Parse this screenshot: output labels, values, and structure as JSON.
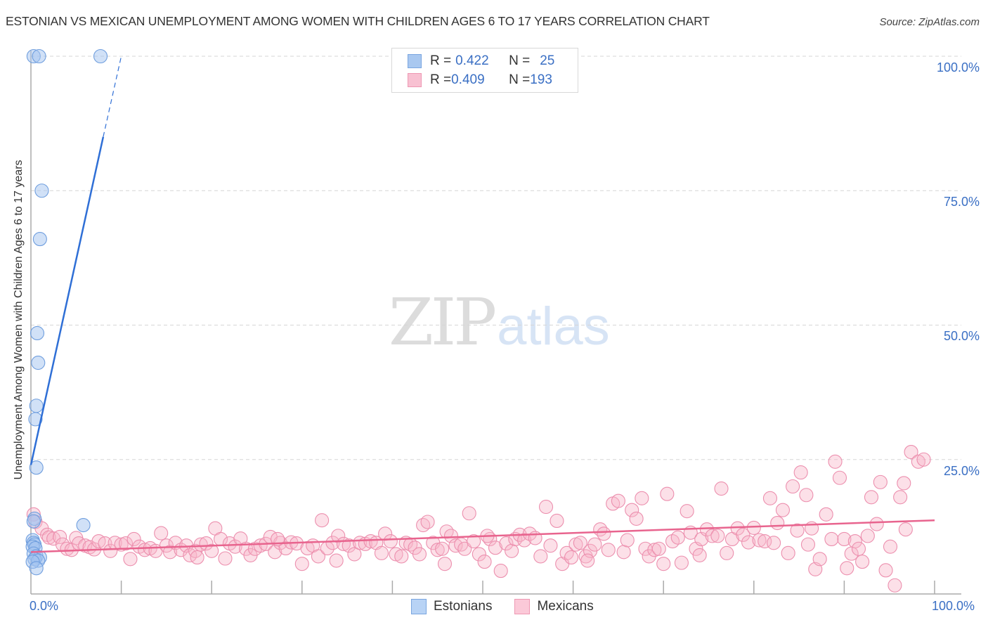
{
  "header": {
    "title": "ESTONIAN VS MEXICAN UNEMPLOYMENT AMONG WOMEN WITH CHILDREN AGES 6 TO 17 YEARS CORRELATION CHART",
    "source": "Source: ZipAtlas.com"
  },
  "legend": {
    "rows": [
      {
        "r_label": "R = ",
        "r_value": "0.422",
        "n_label": "N = ",
        "n_value": "25",
        "color": "#a9c8f0",
        "border": "#7aa6e0"
      },
      {
        "r_label": "R = ",
        "r_value": "0.409",
        "n_label": "N = ",
        "n_value": "193",
        "color": "#f8c1d2",
        "border": "#ee98b3"
      }
    ]
  },
  "bottom_legend": {
    "items": [
      {
        "label": "Estonians",
        "color": "#b8d3f5",
        "border": "#7aa6e0"
      },
      {
        "label": "Mexicans",
        "color": "#fbc9d8",
        "border": "#ee98b3"
      }
    ]
  },
  "axes": {
    "ylabel": "Unemployment Among Women with Children Ages 6 to 17 years",
    "yticks": [
      "100.0%",
      "75.0%",
      "50.0%",
      "25.0%"
    ],
    "xticks": [
      "0.0%",
      "100.0%"
    ]
  },
  "watermark": {
    "zip": "ZIP",
    "atlas": "atlas"
  },
  "colors": {
    "blue_fill": "rgba(164,196,240,0.5)",
    "blue_stroke": "#6f9ede",
    "blue_line": "#2f6fd6",
    "pink_fill": "rgba(248,180,200,0.42)",
    "pink_stroke": "#ec8fae",
    "pink_line": "#e8648e",
    "tick_label": "#3a6fc4"
  },
  "chart_data": {
    "type": "scatter",
    "title": "ESTONIAN VS MEXICAN UNEMPLOYMENT AMONG WOMEN WITH CHILDREN AGES 6 TO 17 YEARS CORRELATION CHART",
    "xlabel": "",
    "ylabel": "Unemployment Among Women with Children Ages 6 to 17 years",
    "xlim": [
      0,
      100
    ],
    "ylim": [
      0,
      100
    ],
    "x_tick_labels": [
      "0.0%",
      "100.0%"
    ],
    "y_tick_labels": [
      "25.0%",
      "50.0%",
      "75.0%",
      "100.0%"
    ],
    "grid": "horizontal dashed at 25/50/75/100",
    "legend_position": "top-center and bottom",
    "series": [
      {
        "name": "Estonians",
        "R": 0.422,
        "N": 25,
        "trend": {
          "x0": 0,
          "y0": 24,
          "x1": 8,
          "y1": 85,
          "dashed_to": {
            "x": 10,
            "y": 100
          }
        },
        "points": [
          [
            0.3,
            100
          ],
          [
            0.9,
            100
          ],
          [
            7.7,
            100
          ],
          [
            1.2,
            75
          ],
          [
            1.0,
            66
          ],
          [
            0.7,
            48.5
          ],
          [
            0.8,
            43
          ],
          [
            0.6,
            35
          ],
          [
            0.5,
            32.5
          ],
          [
            0.6,
            23.5
          ],
          [
            0.4,
            14
          ],
          [
            0.3,
            13.5
          ],
          [
            5.8,
            12.8
          ],
          [
            0.2,
            10
          ],
          [
            0.3,
            9.5
          ],
          [
            0.4,
            9.2
          ],
          [
            0.2,
            8.8
          ],
          [
            0.5,
            8.5
          ],
          [
            0.3,
            7.5
          ],
          [
            0.6,
            7.0
          ],
          [
            1.0,
            6.8
          ],
          [
            0.4,
            6.5
          ],
          [
            0.8,
            6.2
          ],
          [
            0.2,
            6.0
          ],
          [
            0.6,
            4.8
          ]
        ]
      },
      {
        "name": "Mexicans",
        "R": 0.409,
        "N": 193,
        "trend": {
          "x0": 0,
          "y0": 7.8,
          "x1": 100,
          "y1": 13.7
        },
        "points": [
          [
            0.3,
            14.8
          ],
          [
            0.5,
            13.4
          ],
          [
            1.2,
            12.2
          ],
          [
            1.8,
            11.0
          ],
          [
            2.0,
            10.5
          ],
          [
            2.5,
            10.3
          ],
          [
            3.2,
            10.6
          ],
          [
            3.5,
            9.2
          ],
          [
            4.0,
            8.4
          ],
          [
            4.5,
            8.2
          ],
          [
            5.0,
            10.4
          ],
          [
            5.3,
            9.4
          ],
          [
            6.0,
            9.0
          ],
          [
            6.5,
            8.7
          ],
          [
            7.0,
            8.3
          ],
          [
            7.5,
            9.8
          ],
          [
            8.2,
            9.4
          ],
          [
            8.8,
            8.0
          ],
          [
            9.3,
            9.5
          ],
          [
            10.0,
            9.2
          ],
          [
            10.5,
            9.4
          ],
          [
            11.0,
            6.5
          ],
          [
            11.4,
            10.2
          ],
          [
            12.0,
            8.8
          ],
          [
            12.6,
            8.2
          ],
          [
            13.2,
            8.5
          ],
          [
            13.8,
            8.0
          ],
          [
            14.4,
            11.3
          ],
          [
            15.0,
            9.0
          ],
          [
            15.4,
            7.8
          ],
          [
            16.0,
            9.5
          ],
          [
            16.6,
            8.2
          ],
          [
            17.2,
            9.0
          ],
          [
            17.6,
            7.2
          ],
          [
            18.2,
            8.0
          ],
          [
            18.8,
            9.2
          ],
          [
            19.4,
            9.4
          ],
          [
            20.0,
            8.0
          ],
          [
            20.4,
            12.2
          ],
          [
            21.0,
            10.2
          ],
          [
            21.5,
            6.6
          ],
          [
            22.0,
            9.4
          ],
          [
            22.6,
            8.8
          ],
          [
            23.2,
            10.3
          ],
          [
            23.8,
            8.4
          ],
          [
            24.3,
            7.2
          ],
          [
            24.8,
            8.4
          ],
          [
            25.4,
            9.0
          ],
          [
            26.0,
            9.3
          ],
          [
            26.5,
            10.6
          ],
          [
            27.0,
            7.8
          ],
          [
            27.6,
            9.5
          ],
          [
            28.2,
            8.5
          ],
          [
            28.8,
            9.6
          ],
          [
            29.4,
            9.4
          ],
          [
            30.0,
            5.6
          ],
          [
            30.6,
            8.5
          ],
          [
            31.2,
            9.0
          ],
          [
            31.8,
            7.0
          ],
          [
            32.2,
            13.7
          ],
          [
            32.8,
            8.5
          ],
          [
            33.4,
            9.5
          ],
          [
            34.0,
            10.8
          ],
          [
            34.6,
            9.3
          ],
          [
            35.2,
            9.0
          ],
          [
            35.8,
            7.4
          ],
          [
            36.4,
            9.5
          ],
          [
            37.0,
            9.3
          ],
          [
            37.6,
            9.8
          ],
          [
            38.2,
            9.5
          ],
          [
            38.8,
            7.6
          ],
          [
            39.2,
            11.2
          ],
          [
            39.8,
            9.8
          ],
          [
            40.4,
            7.4
          ],
          [
            41.0,
            7.0
          ],
          [
            41.5,
            9.5
          ],
          [
            42.0,
            9.2
          ],
          [
            42.5,
            8.6
          ],
          [
            43.0,
            7.4
          ],
          [
            43.4,
            12.8
          ],
          [
            43.9,
            13.4
          ],
          [
            44.5,
            9.5
          ],
          [
            45.0,
            8.2
          ],
          [
            45.5,
            8.4
          ],
          [
            46.0,
            11.6
          ],
          [
            46.5,
            10.8
          ],
          [
            47.0,
            9.0
          ],
          [
            47.6,
            9.2
          ],
          [
            48.0,
            8.4
          ],
          [
            48.5,
            15.0
          ],
          [
            49.0,
            9.8
          ],
          [
            49.6,
            7.4
          ],
          [
            50.2,
            6.0
          ],
          [
            50.8,
            10.2
          ],
          [
            51.4,
            8.6
          ],
          [
            52.0,
            4.3
          ],
          [
            52.6,
            9.4
          ],
          [
            53.2,
            8.0
          ],
          [
            53.6,
            10.2
          ],
          [
            54.1,
            11.0
          ],
          [
            54.6,
            10.0
          ],
          [
            55.2,
            11.2
          ],
          [
            55.8,
            10.4
          ],
          [
            56.4,
            7.0
          ],
          [
            57.0,
            16.2
          ],
          [
            57.5,
            9.0
          ],
          [
            58.2,
            13.6
          ],
          [
            58.8,
            5.6
          ],
          [
            59.3,
            7.6
          ],
          [
            59.8,
            6.8
          ],
          [
            60.3,
            9.2
          ],
          [
            60.8,
            9.5
          ],
          [
            61.4,
            7.0
          ],
          [
            61.9,
            8.0
          ],
          [
            62.4,
            9.2
          ],
          [
            63.0,
            12.0
          ],
          [
            63.4,
            11.2
          ],
          [
            63.9,
            8.2
          ],
          [
            64.4,
            16.8
          ],
          [
            65.0,
            17.3
          ],
          [
            65.6,
            7.8
          ],
          [
            66.0,
            10.0
          ],
          [
            66.5,
            15.6
          ],
          [
            67.0,
            14.0
          ],
          [
            67.6,
            17.8
          ],
          [
            68.0,
            8.4
          ],
          [
            68.4,
            7.0
          ],
          [
            69.0,
            8.2
          ],
          [
            69.5,
            8.4
          ],
          [
            70.0,
            5.6
          ],
          [
            70.4,
            18.6
          ],
          [
            71.0,
            9.8
          ],
          [
            71.6,
            10.5
          ],
          [
            72.0,
            5.8
          ],
          [
            72.6,
            15.4
          ],
          [
            73.0,
            11.4
          ],
          [
            73.6,
            8.4
          ],
          [
            74.2,
            10.2
          ],
          [
            74.8,
            12.0
          ],
          [
            75.4,
            10.8
          ],
          [
            76.0,
            10.8
          ],
          [
            76.4,
            19.6
          ],
          [
            77.0,
            7.6
          ],
          [
            77.6,
            10.2
          ],
          [
            78.2,
            12.2
          ],
          [
            78.8,
            11.0
          ],
          [
            79.4,
            9.6
          ],
          [
            80.0,
            12.3
          ],
          [
            80.6,
            10.0
          ],
          [
            81.2,
            9.8
          ],
          [
            81.8,
            17.8
          ],
          [
            82.2,
            9.5
          ],
          [
            82.6,
            13.2
          ],
          [
            83.2,
            15.6
          ],
          [
            83.8,
            7.6
          ],
          [
            84.3,
            20.0
          ],
          [
            84.8,
            11.8
          ],
          [
            85.2,
            22.6
          ],
          [
            85.8,
            18.4
          ],
          [
            86.4,
            12.2
          ],
          [
            86.8,
            4.6
          ],
          [
            87.3,
            6.5
          ],
          [
            88.0,
            14.8
          ],
          [
            88.6,
            10.2
          ],
          [
            89.0,
            24.6
          ],
          [
            89.5,
            21.6
          ],
          [
            90.0,
            10.2
          ],
          [
            90.3,
            4.8
          ],
          [
            90.8,
            7.5
          ],
          [
            91.2,
            9.8
          ],
          [
            91.6,
            8.4
          ],
          [
            92.0,
            6.0
          ],
          [
            92.6,
            10.8
          ],
          [
            93.0,
            18.0
          ],
          [
            93.6,
            13.0
          ],
          [
            94.0,
            20.8
          ],
          [
            94.6,
            4.4
          ],
          [
            95.1,
            8.8
          ],
          [
            95.6,
            1.6
          ],
          [
            96.2,
            18.0
          ],
          [
            96.6,
            20.6
          ],
          [
            96.8,
            12.0
          ],
          [
            97.4,
            26.4
          ],
          [
            98.2,
            24.6
          ],
          [
            98.8,
            25.0
          ],
          [
            50.5,
            10.8
          ],
          [
            18.4,
            6.8
          ],
          [
            27.3,
            10.2
          ],
          [
            33.8,
            6.2
          ],
          [
            45.8,
            5.6
          ],
          [
            61.6,
            6.2
          ],
          [
            74.0,
            7.2
          ],
          [
            86.0,
            9.2
          ]
        ]
      }
    ]
  }
}
